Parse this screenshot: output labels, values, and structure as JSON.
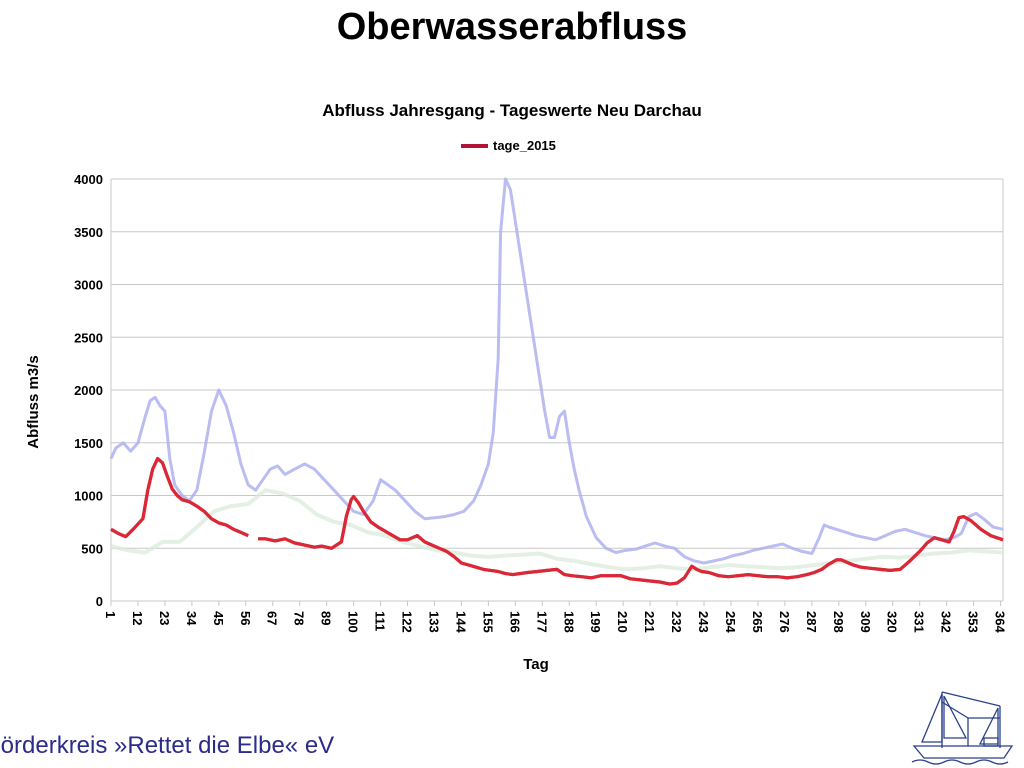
{
  "slide": {
    "title": "Oberwasserabfluss",
    "footer": "Förderkreis »Rettet die Elbe« eV",
    "logo": "sailing-ship-logo"
  },
  "colors": {
    "series_2015": "#b21233",
    "series_2015_overlay": "#e8303a",
    "background_high": "#aeb1ee",
    "background_low": "#d9e9d9",
    "grid": "#c8c8c8",
    "footer_text": "#2b2b8c"
  },
  "chart_data": {
    "type": "line",
    "title": "Abfluss Jahresgang - Tageswerte Neu Darchau",
    "xlabel": "Tag",
    "ylabel": "Abfluss m3/s",
    "ylim": [
      0,
      4000
    ],
    "xlim": [
      1,
      365
    ],
    "yticks": [
      0,
      500,
      1000,
      1500,
      2000,
      2500,
      3000,
      3500,
      4000
    ],
    "xticks": [
      1,
      12,
      23,
      34,
      45,
      56,
      67,
      78,
      89,
      100,
      111,
      122,
      133,
      144,
      155,
      166,
      177,
      188,
      199,
      210,
      221,
      232,
      243,
      254,
      265,
      276,
      287,
      298,
      309,
      320,
      331,
      342,
      353,
      364
    ],
    "grid": true,
    "legend_position": "top-center",
    "series": [
      {
        "name": "tage_2015",
        "x": [
          1,
          4,
          7,
          10,
          14,
          16,
          18,
          20,
          22,
          24,
          26,
          28,
          30,
          33,
          36,
          39,
          42,
          45,
          48,
          51,
          54,
          57,
          59,
          61,
          64,
          68,
          72,
          76,
          80,
          84,
          87,
          91,
          95,
          97,
          99,
          100,
          102,
          104,
          107,
          110,
          113,
          116,
          119,
          122,
          124,
          126,
          129,
          132,
          135,
          138,
          141,
          144,
          147,
          150,
          153,
          156,
          159,
          162,
          165,
          168,
          171,
          175,
          179,
          183,
          186,
          189,
          193,
          197,
          201,
          205,
          209,
          213,
          217,
          221,
          225,
          229,
          232,
          235,
          238,
          240,
          242,
          245,
          249,
          253,
          257,
          261,
          265,
          269,
          273,
          277,
          281,
          285,
          288,
          291,
          294,
          297,
          299,
          301,
          304,
          307,
          311,
          315,
          319,
          323,
          327,
          331,
          334,
          337,
          340,
          343,
          345,
          347,
          349,
          352,
          356,
          360,
          365
        ],
        "values": [
          680,
          640,
          610,
          680,
          780,
          1050,
          1250,
          1350,
          1310,
          1180,
          1060,
          1000,
          960,
          940,
          900,
          850,
          780,
          740,
          720,
          680,
          650,
          620,
          null,
          590,
          590,
          570,
          590,
          550,
          530,
          510,
          520,
          500,
          560,
          800,
          960,
          990,
          930,
          850,
          750,
          700,
          660,
          620,
          580,
          580,
          600,
          620,
          560,
          530,
          500,
          470,
          420,
          360,
          340,
          320,
          300,
          290,
          280,
          260,
          250,
          260,
          270,
          280,
          290,
          300,
          250,
          240,
          230,
          220,
          240,
          240,
          240,
          210,
          200,
          190,
          180,
          160,
          170,
          220,
          330,
          300,
          280,
          270,
          240,
          230,
          240,
          250,
          240,
          230,
          230,
          220,
          230,
          250,
          270,
          300,
          350,
          390,
          390,
          370,
          340,
          320,
          310,
          300,
          290,
          300,
          380,
          470,
          550,
          600,
          580,
          560,
          660,
          790,
          800,
          760,
          680,
          620,
          580
        ]
      }
    ],
    "background_series": [
      {
        "x": [
          1,
          3,
          6,
          9,
          12,
          15,
          17,
          19,
          21,
          23,
          25,
          27,
          30,
          33,
          36,
          39,
          42,
          45,
          48,
          51,
          54,
          57,
          60,
          63,
          66,
          69,
          72,
          76,
          80,
          84,
          88,
          92,
          96,
          100,
          104,
          108,
          111,
          114,
          117,
          121,
          125,
          129,
          133,
          137,
          141,
          145,
          149,
          152,
          155,
          157,
          159,
          160,
          162,
          164,
          166,
          168,
          170,
          172,
          174,
          176,
          178,
          180,
          182,
          184,
          186,
          188,
          190,
          192,
          195,
          199,
          203,
          207,
          211,
          215,
          219,
          223,
          227,
          231,
          235,
          239,
          243,
          247,
          251,
          255,
          259,
          263,
          267,
          271,
          275,
          279,
          283,
          287,
          290,
          292,
          294,
          297,
          301,
          305,
          309,
          313,
          317,
          321,
          325,
          329,
          333,
          337,
          341,
          345,
          348,
          351,
          354,
          357,
          361,
          365
        ],
        "values": [
          1350,
          1450,
          1500,
          1420,
          1500,
          1750,
          1900,
          1930,
          1850,
          1800,
          1350,
          1100,
          1000,
          950,
          1050,
          1400,
          1800,
          2000,
          1850,
          1600,
          1300,
          1100,
          1050,
          1150,
          1250,
          1280,
          1200,
          1250,
          1300,
          1250,
          1150,
          1050,
          950,
          850,
          820,
          950,
          1150,
          1100,
          1050,
          950,
          850,
          780,
          790,
          800,
          820,
          850,
          950,
          1100,
          1300,
          1600,
          2300,
          3500,
          4000,
          3900,
          3600,
          3300,
          3000,
          2700,
          2400,
          2100,
          1800,
          1550,
          1550,
          1750,
          1800,
          1500,
          1250,
          1050,
          800,
          600,
          500,
          460,
          480,
          490,
          520,
          550,
          520,
          500,
          420,
          380,
          360,
          380,
          400,
          430,
          450,
          480,
          500,
          520,
          540,
          500,
          470,
          450,
          600,
          720,
          700,
          680,
          650,
          620,
          600,
          580,
          620,
          660,
          680,
          650,
          620,
          600,
          580,
          600,
          640,
          800,
          830,
          780,
          700,
          680
        ]
      },
      {
        "x": [
          1,
          8,
          15,
          22,
          29,
          36,
          43,
          50,
          57,
          64,
          71,
          78,
          85,
          92,
          99,
          106,
          113,
          120,
          127,
          134,
          141,
          148,
          155,
          162,
          169,
          176,
          183,
          190,
          197,
          204,
          211,
          218,
          225,
          232,
          239,
          246,
          253,
          260,
          267,
          274,
          281,
          288,
          295,
          302,
          309,
          316,
          323,
          330,
          337,
          344,
          351,
          358,
          365
        ],
        "values": [
          520,
          480,
          460,
          560,
          560,
          700,
          850,
          900,
          920,
          1050,
          1020,
          950,
          820,
          750,
          720,
          650,
          620,
          560,
          520,
          480,
          460,
          430,
          420,
          430,
          440,
          450,
          400,
          380,
          350,
          320,
          300,
          310,
          330,
          310,
          300,
          320,
          340,
          330,
          320,
          310,
          320,
          340,
          360,
          380,
          400,
          420,
          410,
          430,
          450,
          460,
          480,
          470,
          460
        ]
      }
    ]
  }
}
